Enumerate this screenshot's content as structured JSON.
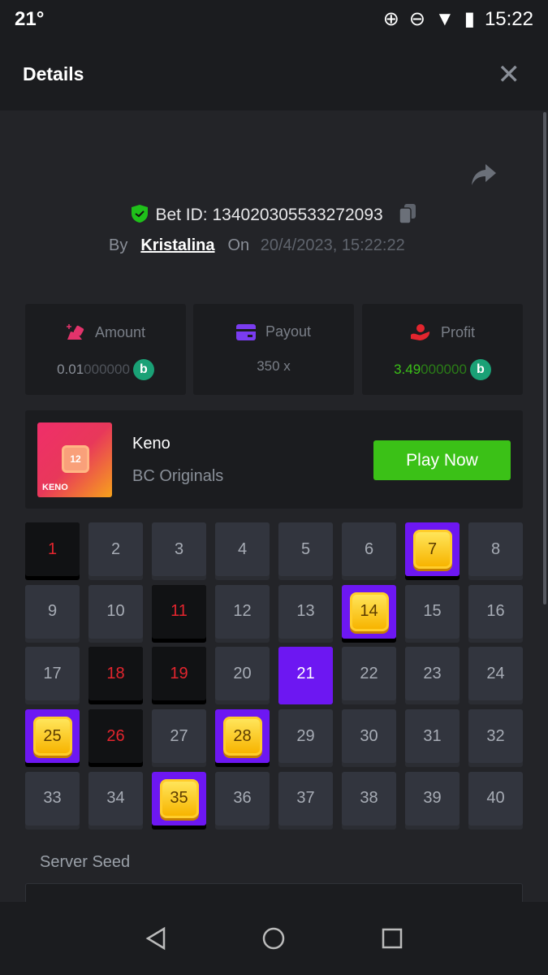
{
  "status_bar": {
    "temperature": "21°",
    "time": "15:22"
  },
  "header": {
    "title": "Details",
    "close_icon": "close-icon"
  },
  "bet": {
    "id_label": "Bet ID: 134020305533272093",
    "by_label": "By",
    "user": "Kristalina",
    "on_label": "On",
    "datetime": "20/4/2023, 15:22:22"
  },
  "stats": {
    "amount": {
      "label": "Amount",
      "value_bright": "0.01",
      "value_dim": "000000",
      "icon": "bet-hand-icon",
      "color": "#e2336b"
    },
    "payout": {
      "label": "Payout",
      "value": "350 x",
      "icon": "wallet-icon",
      "color": "#7a3cf0"
    },
    "profit": {
      "label": "Profit",
      "value_bright": "3.49",
      "value_dim": "000000",
      "icon": "profit-hand-icon",
      "color": "#e3252e",
      "value_color": "#3bc117"
    },
    "coin_symbol": "b"
  },
  "game": {
    "name": "Keno",
    "provider": "BC Originals",
    "thumb_number": "12",
    "thumb_label": "KENO",
    "play_label": "Play Now"
  },
  "keno": {
    "numbers": [
      1,
      2,
      3,
      4,
      5,
      6,
      7,
      8,
      9,
      10,
      11,
      12,
      13,
      14,
      15,
      16,
      17,
      18,
      19,
      20,
      21,
      22,
      23,
      24,
      25,
      26,
      27,
      28,
      29,
      30,
      31,
      32,
      33,
      34,
      35,
      36,
      37,
      38,
      39,
      40
    ],
    "missed": [
      1,
      11,
      18,
      19,
      26
    ],
    "hits": [
      7,
      14,
      25,
      28,
      35
    ],
    "drawn_only": [
      21
    ]
  },
  "server_seed": {
    "label": "Server Seed"
  },
  "colors": {
    "accent_purple": "#6d17f2",
    "green": "#3bc117",
    "red": "#e3252e"
  }
}
